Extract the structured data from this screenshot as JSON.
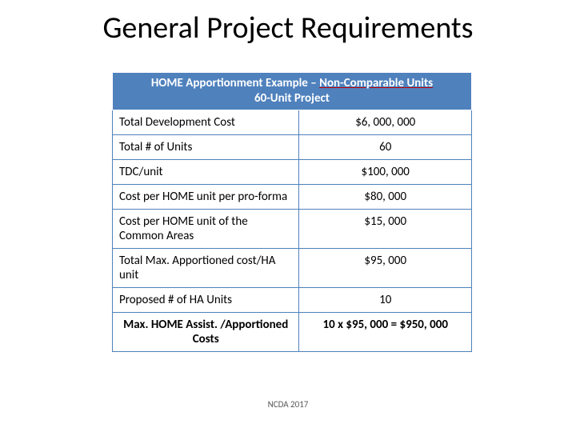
{
  "title": "General Project Requirements",
  "table": {
    "header_line1_prefix": "HOME Apportionment Example – ",
    "header_line1_underlined": "Non-Comparable Units",
    "header_line2": "60-Unit Project",
    "header_bg": "#4f81bd",
    "header_fg": "#ffffff",
    "border_color": "#4f81bd",
    "underline_color": "#c00000",
    "col_widths_pct": [
      52,
      48
    ],
    "rows": [
      {
        "label": "Total Development Cost",
        "value": "$6, 000, 000"
      },
      {
        "label": "Total # of Units",
        "value": "60"
      },
      {
        "label": "TDC/unit",
        "value": "$100, 000"
      },
      {
        "label": "Cost per HOME unit per pro-forma",
        "value": "$80, 000"
      },
      {
        "label": "Cost per HOME unit of the Common Areas",
        "value": "$15, 000"
      },
      {
        "label": "Total Max. Apportioned cost/HA unit",
        "value": "$95, 000"
      },
      {
        "label": "Proposed # of HA Units",
        "value": "10"
      }
    ],
    "last_row": {
      "label": "Max. HOME Assist. /Apportioned Costs",
      "value": "10 x $95, 000 = $950, 000"
    },
    "label_fontsize": 15,
    "title_fontsize": 38
  },
  "footer": "NCDA 2017"
}
